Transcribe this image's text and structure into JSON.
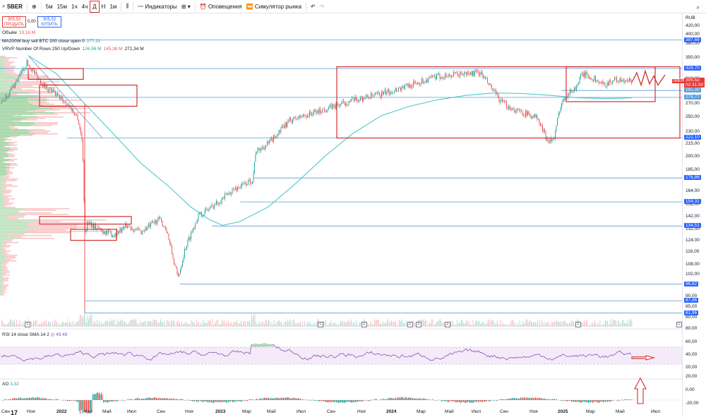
{
  "toolbar": {
    "symbol": "SBER",
    "intervals": [
      "5м",
      "15м",
      "1ч",
      "4ч",
      "Д",
      "Н",
      "1м"
    ],
    "indicators_label": "Индикаторы",
    "alerts_label": "Оповещения",
    "replay_label": "Симулятор рынка"
  },
  "trade": {
    "sell_price": "305,52",
    "sell_label": "ПРОДАТЬ",
    "spread": "0,00",
    "buy_price": "305,52",
    "buy_label": "КУПИТЬ"
  },
  "legend": {
    "volume_name": "Объём",
    "volume_value": "19,16 M",
    "ma_name": "MA200W buy sell BTC 200 close open 0",
    "ma_value": "277,31",
    "vrvp_name": "VRVP Number Of Rows 250 Up/Down",
    "vrvp_up": "126,96 M",
    "vrvp_down": "145,38 M",
    "vrvp_total": "272,34 M"
  },
  "rsi": {
    "label": "RSI 14 close SMA 14 2",
    "value": "49,48",
    "ticks": [
      "80,00",
      "60,00",
      "40,00",
      "20,00"
    ]
  },
  "ao": {
    "label": "AO",
    "value": "3,32",
    "ticks": [
      "20,00",
      "0,00",
      "-20,00"
    ]
  },
  "price_scale": {
    "currency": "RUB",
    "ticks": [
      "420,00",
      "400,00",
      "380,00",
      "350,00",
      "330,00",
      "310,00",
      "290,00",
      "270,00",
      "250,00",
      "230,00",
      "215,00",
      "200,00",
      "185,00",
      "164,00",
      "152,00",
      "142,00",
      "132,00",
      "124,00",
      "116,00",
      "108,00",
      "102,00",
      "90,00",
      "85,00",
      "80,00"
    ],
    "levels": [
      {
        "label": "387,69",
        "value": 387.69
      },
      {
        "label": "329,70",
        "value": 329.7
      },
      {
        "label": "291,00",
        "value": 291.0
      },
      {
        "label": "279,77",
        "value": 279.77
      },
      {
        "label": "222,10",
        "value": 222.1
      },
      {
        "label": "176,86",
        "value": 176.86
      },
      {
        "label": "154,31",
        "value": 154.31
      },
      {
        "label": "134,51",
        "value": 134.51
      },
      {
        "label": "96,62",
        "value": 96.62
      },
      {
        "label": "87,86",
        "value": 87.86
      },
      {
        "label": "81,96",
        "value": 81.96
      }
    ],
    "current": {
      "ticker": "SBER",
      "price": "305,52",
      "countdown": "02:31:50",
      "value": 305.52
    }
  },
  "x_axis": [
    "Сен",
    "Ноя",
    "2022",
    "Мар",
    "Май",
    "Июл",
    "Сен",
    "Ноя",
    "2023",
    "Мар",
    "Май",
    "Июл",
    "Сен",
    "Ноя",
    "2024",
    "Мар",
    "Май",
    "Июл",
    "Сен",
    "Ноя",
    "2025",
    "Мар",
    "Май",
    "Июл"
  ],
  "earnings_mark": "E",
  "colors": {
    "up": "#26a69a",
    "down": "#ef5350",
    "ma": "#4dc9c9",
    "box": "#d32f2f",
    "level": "#5b9bd5"
  }
}
